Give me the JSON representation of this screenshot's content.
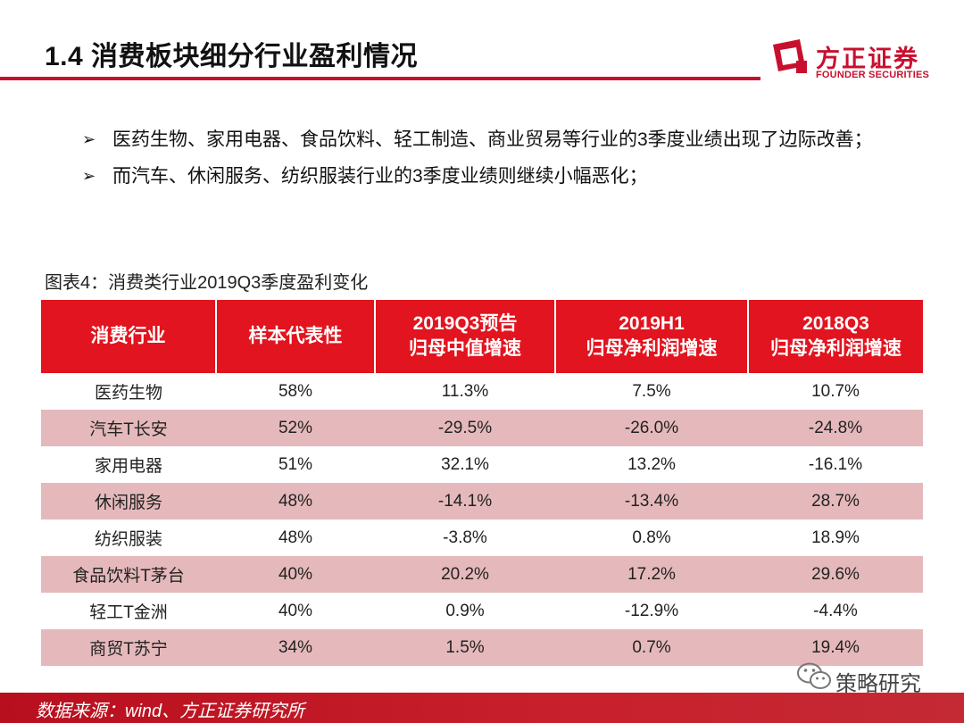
{
  "header": {
    "title": "1.4 消费板块细分行业盈利情况",
    "logo_cn": "方正证券",
    "logo_en": "FOUNDER SECURITIES",
    "logo_icon": "founder-logo-icon",
    "brand_color": "#c8102e"
  },
  "bullets": [
    {
      "marker": "➢",
      "text": "医药生物、家用电器、食品饮料、轻工制造、商业贸易等行业的3季度业绩出现了边际改善；"
    },
    {
      "marker": "➢",
      "text": "而汽车、休闲服务、纺织服装行业的3季度业绩则继续小幅恶化；"
    }
  ],
  "table": {
    "caption": "图表4：消费类行业2019Q3季度盈利变化",
    "header_color": "#e1141f",
    "alt_row_color": "#e5b9bb",
    "headers": [
      {
        "line1": "消费行业",
        "line2": ""
      },
      {
        "line1": "样本代表性",
        "line2": ""
      },
      {
        "line1": "2019Q3预告",
        "line2": "归母中值增速"
      },
      {
        "line1": "2019H1",
        "line2": "归母净利润增速"
      },
      {
        "line1": "2018Q3",
        "line2": "归母净利润增速"
      }
    ],
    "rows": [
      [
        "医药生物",
        "58%",
        "11.3%",
        "7.5%",
        "10.7%"
      ],
      [
        "汽车T长安",
        "52%",
        "-29.5%",
        "-26.0%",
        "-24.8%"
      ],
      [
        "家用电器",
        "51%",
        "32.1%",
        "13.2%",
        "-16.1%"
      ],
      [
        "休闲服务",
        "48%",
        "-14.1%",
        "-13.4%",
        "28.7%"
      ],
      [
        "纺织服装",
        "48%",
        "-3.8%",
        "0.8%",
        "18.9%"
      ],
      [
        "食品饮料T茅台",
        "40%",
        "20.2%",
        "17.2%",
        "29.6%"
      ],
      [
        "轻工T金洲",
        "40%",
        "0.9%",
        "-12.9%",
        "-4.4%"
      ],
      [
        "商贸T苏宁",
        "34%",
        "1.5%",
        "0.7%",
        "19.4%"
      ]
    ]
  },
  "footer": {
    "source": "数据来源：wind、方正证券研究所"
  },
  "watermark": {
    "label": "策略研究",
    "icon": "wechat-icon"
  }
}
